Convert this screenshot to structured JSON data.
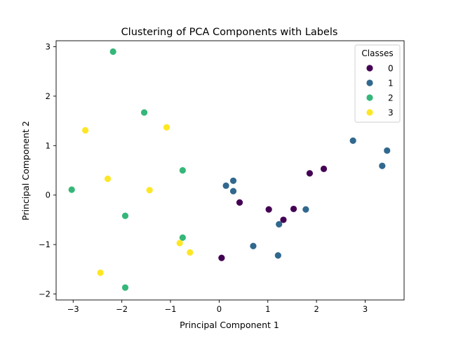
{
  "chart_data": {
    "type": "scatter",
    "title": "Clustering of PCA Components with Labels",
    "xlabel": "Principal Component 1",
    "ylabel": "Principal Component 2",
    "xlim": [
      -3.35,
      3.8
    ],
    "ylim": [
      -2.12,
      3.12
    ],
    "xticks": [
      -3,
      -2,
      -1,
      0,
      1,
      2,
      3
    ],
    "yticks": [
      -2,
      -1,
      0,
      1,
      2,
      3
    ],
    "grid": false,
    "legend": {
      "title": "Classes",
      "placement": "top-right"
    },
    "series": [
      {
        "name": "0",
        "color": "#440154",
        "points": [
          {
            "x": 0.05,
            "y": -1.27
          },
          {
            "x": 0.42,
            "y": -0.15
          },
          {
            "x": 1.02,
            "y": -0.29
          },
          {
            "x": 1.32,
            "y": -0.5
          },
          {
            "x": 1.53,
            "y": -0.28
          },
          {
            "x": 1.86,
            "y": 0.44
          },
          {
            "x": 2.15,
            "y": 0.53
          }
        ]
      },
      {
        "name": "1",
        "color": "#31688e",
        "points": [
          {
            "x": 0.14,
            "y": 0.19
          },
          {
            "x": 0.29,
            "y": 0.29
          },
          {
            "x": 0.29,
            "y": 0.08
          },
          {
            "x": 0.7,
            "y": -1.03
          },
          {
            "x": 1.21,
            "y": -1.22
          },
          {
            "x": 1.23,
            "y": -0.59
          },
          {
            "x": 1.78,
            "y": -0.29
          },
          {
            "x": 2.75,
            "y": 1.1
          },
          {
            "x": 3.35,
            "y": 0.59
          },
          {
            "x": 3.45,
            "y": 0.9
          }
        ]
      },
      {
        "name": "2",
        "color": "#35b779",
        "points": [
          {
            "x": -2.18,
            "y": 2.9
          },
          {
            "x": -1.54,
            "y": 1.67
          },
          {
            "x": -3.03,
            "y": 0.11
          },
          {
            "x": -0.75,
            "y": 0.5
          },
          {
            "x": -1.93,
            "y": -0.42
          },
          {
            "x": -0.75,
            "y": -0.86
          },
          {
            "x": -1.93,
            "y": -1.87
          }
        ]
      },
      {
        "name": "3",
        "color": "#fde725",
        "points": [
          {
            "x": -2.75,
            "y": 1.31
          },
          {
            "x": -1.08,
            "y": 1.37
          },
          {
            "x": -2.29,
            "y": 0.33
          },
          {
            "x": -1.43,
            "y": 0.1
          },
          {
            "x": -0.81,
            "y": -0.97
          },
          {
            "x": -0.6,
            "y": -1.16
          },
          {
            "x": -2.44,
            "y": -1.57
          }
        ]
      }
    ]
  }
}
